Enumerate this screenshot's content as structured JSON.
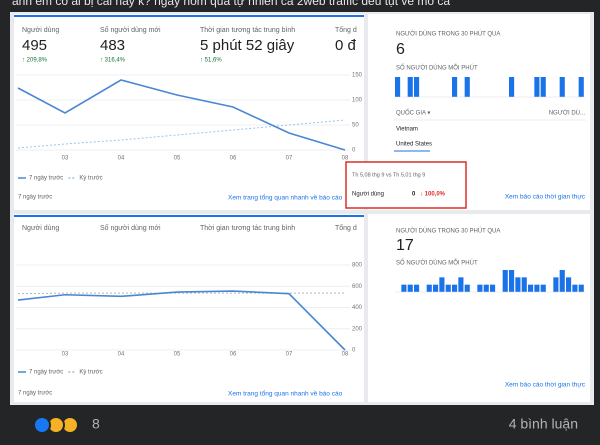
{
  "post": {
    "text": "anh em có ai bị cái này k? ngày hôm qua tự nhiên cả 2web traffic đều tụt về mo cả",
    "reaction_count": "8",
    "comments": "4 bình luận"
  },
  "panels": [
    {
      "metrics": [
        {
          "label": "Người dùng",
          "value": "495",
          "change": "↑ 209,8%"
        },
        {
          "label": "Số người dùng mới",
          "value": "483",
          "change": "↑ 316,4%"
        },
        {
          "label": "Thời gian tương tác trung bình",
          "value": "5 phút 52 giây",
          "change": "↑ 51,6%"
        },
        {
          "label": "Tổng d",
          "value": "0 đ"
        }
      ],
      "chart": {
        "type": "line",
        "categories": [
          null,
          "03",
          "04",
          "05",
          "06",
          "07",
          "08"
        ],
        "series": [
          {
            "name": "7 ngày trước",
            "color": "#4a86d4",
            "values": [
              124,
              74,
              140,
              110,
              86,
              34,
              0
            ]
          },
          {
            "name": "Kỳ trước",
            "color": "#9fc3ea",
            "dashed": true,
            "values": [
              4,
              12,
              20,
              30,
              40,
              50,
              60
            ]
          }
        ],
        "ylim": [
          0,
          150
        ],
        "yticks": [
          0,
          50,
          100,
          150
        ]
      },
      "date_range": "7 ngày trước",
      "link": "Xem trang tổng quan nhanh về báo cáo",
      "tooltip": {
        "title": "Th 5,08 thg 9 vs Th 5,01 thg 9",
        "label": "Người dùng",
        "value": "0",
        "change": "↓ 100,0%"
      },
      "realtime": {
        "title": "NGƯỜI DÙNG TRONG 30 PHÚT QUA",
        "value": "6",
        "subtitle": "SỐ NGƯỜI DÙNG MỖI PHÚT",
        "chart": {
          "type": "bar",
          "color": "#1a73e8",
          "values": [
            1,
            0,
            1,
            1,
            0,
            0,
            0,
            0,
            0,
            1,
            0,
            1,
            0,
            0,
            0,
            0,
            0,
            0,
            1,
            0,
            0,
            0,
            1,
            1,
            0,
            0,
            1,
            0,
            0,
            1
          ],
          "ylim": [
            0,
            1
          ]
        },
        "table": {
          "headers": [
            "QUỐC GIA ▾",
            "NGƯỜI DÙ..."
          ],
          "rows": [
            "Vietnam",
            "United States"
          ]
        },
        "link": "Xem báo cáo thời gian thực"
      }
    },
    {
      "metrics": [
        {
          "label": "Người dùng"
        },
        {
          "label": "Số người dùng mới"
        },
        {
          "label": "Thời gian tương tác trung bình"
        },
        {
          "label": "Tổng d"
        }
      ],
      "chart": {
        "type": "line",
        "categories": [
          null,
          "03",
          "04",
          "05",
          "06",
          "07",
          "08"
        ],
        "series": [
          {
            "name": "7 ngày trước",
            "color": "#4a86d4",
            "values": [
              470,
              520,
              505,
              545,
              555,
              530,
              0
            ]
          },
          {
            "name": "Kỳ trước",
            "color": "#b0b6be",
            "dashed": true,
            "values": [
              530,
              535,
              535,
              535,
              535,
              535,
              535
            ]
          }
        ],
        "ylim": [
          0,
          800
        ],
        "yticks": [
          0,
          200,
          400,
          600,
          800
        ]
      },
      "date_range": "7 ngày trước",
      "link": "Xem trang tổng quan nhanh về báo cáo",
      "realtime": {
        "title": "NGƯỜI DÙNG TRONG 30 PHÚT QUA",
        "value": "17",
        "subtitle": "SỐ NGƯỜI DÙNG MỖI PHÚT",
        "chart": {
          "type": "bar",
          "color": "#1a73e8",
          "values": [
            0,
            1,
            1,
            1,
            0,
            1,
            1,
            2,
            1,
            1,
            2,
            1,
            0,
            1,
            1,
            1,
            0,
            3,
            3,
            2,
            2,
            1,
            1,
            1,
            0,
            2,
            3,
            2,
            1,
            1
          ],
          "ylim": [
            0,
            3
          ]
        },
        "link": "Xem báo cáo thời gian thực"
      }
    }
  ]
}
